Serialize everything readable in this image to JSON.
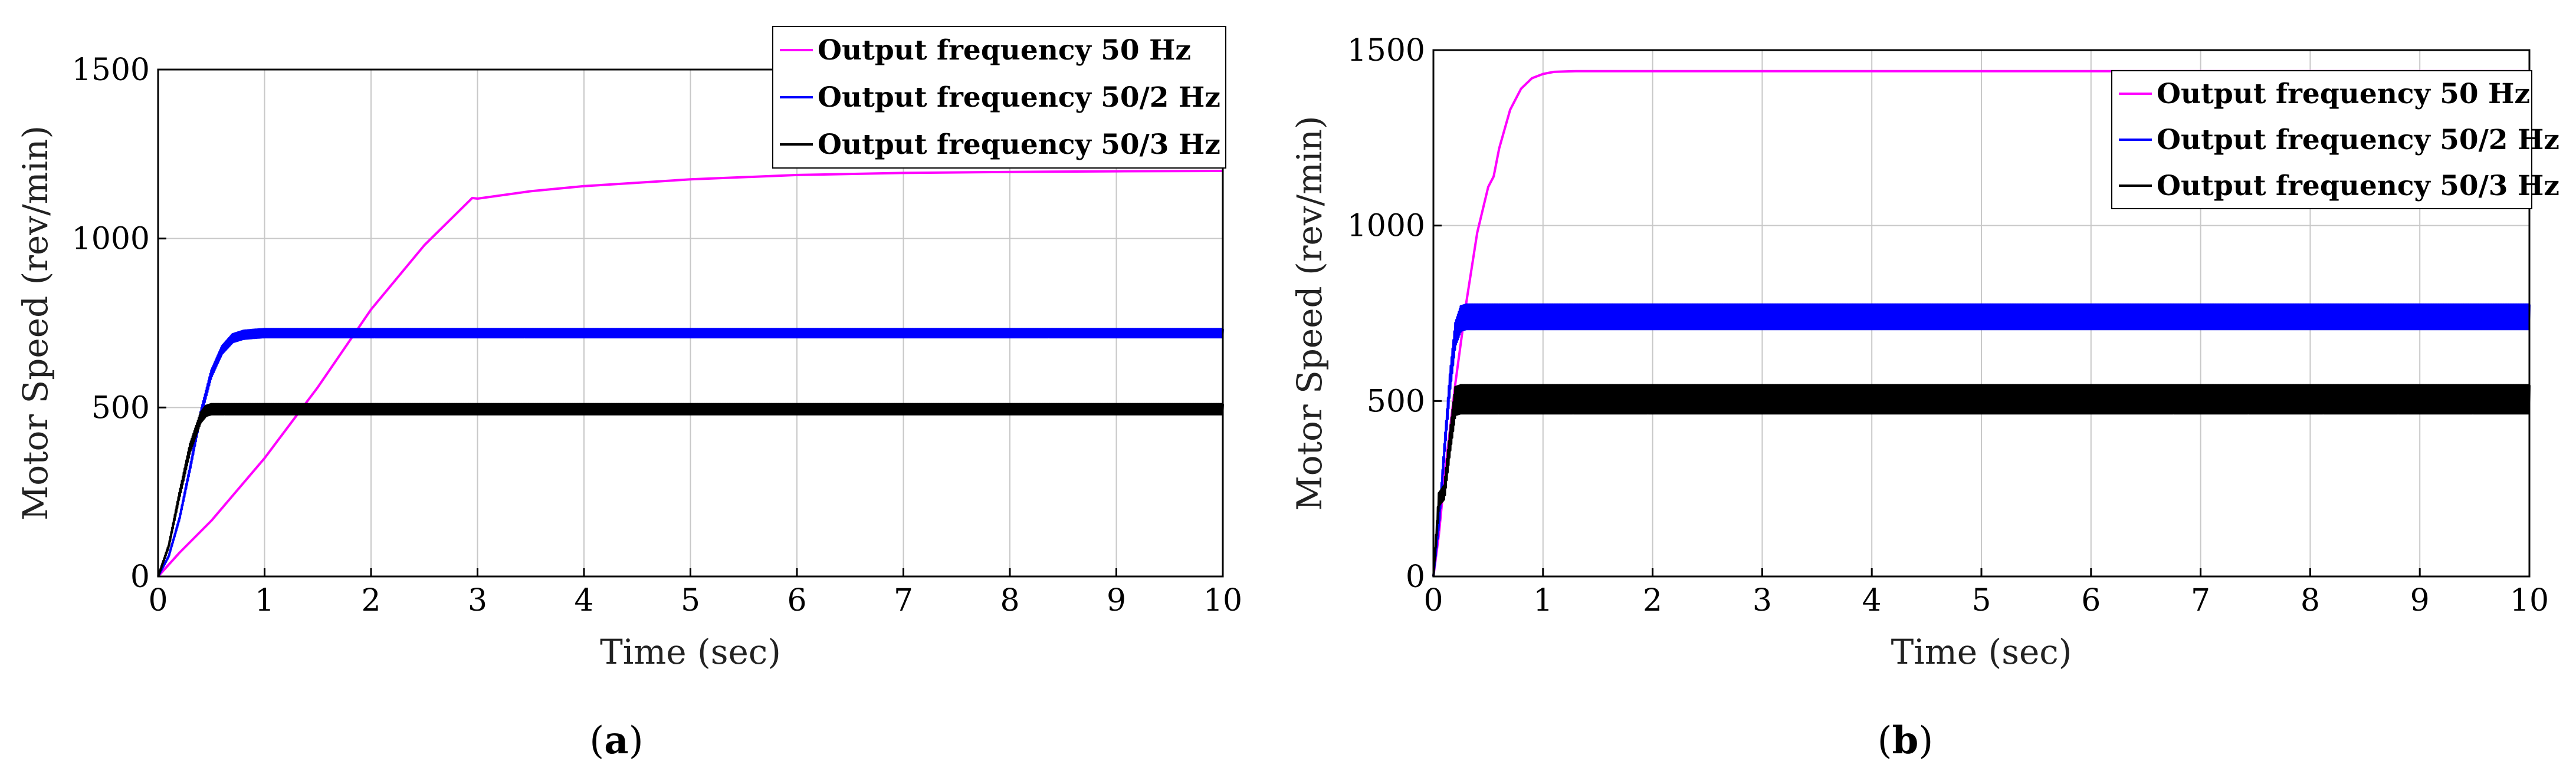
{
  "figure": {
    "captions": [
      "(a)",
      "(b)"
    ],
    "caption_letters": [
      "a",
      "b"
    ]
  },
  "chart_data": [
    {
      "id": "a",
      "type": "line",
      "xlabel": "Time (sec)",
      "ylabel": "Motor Speed (rev/min)",
      "xlim": [
        0,
        10
      ],
      "ylim": [
        0,
        1500
      ],
      "xticks": [
        0,
        1,
        2,
        3,
        4,
        5,
        6,
        7,
        8,
        9,
        10
      ],
      "yticks": [
        0,
        500,
        1000,
        1500
      ],
      "grid": true,
      "legend_position": "top-right",
      "series": [
        {
          "name": "Output frequency 50 Hz",
          "color": "#ff00ff",
          "oscillation": 0,
          "x": [
            0,
            0.2,
            0.5,
            1.0,
            1.5,
            2.0,
            2.5,
            2.95,
            3.0,
            3.5,
            4.0,
            5.0,
            6.0,
            7.0,
            8.0,
            9.0,
            10.0
          ],
          "y": [
            0,
            70,
            165,
            350,
            560,
            790,
            980,
            1120,
            1118,
            1140,
            1155,
            1175,
            1188,
            1194,
            1197,
            1199,
            1200
          ]
        },
        {
          "name": "Output frequency 50/2 Hz",
          "color": "#0000ff",
          "oscillation": 12,
          "x": [
            0,
            0.1,
            0.2,
            0.3,
            0.4,
            0.5,
            0.6,
            0.7,
            0.8,
            0.9,
            1.0,
            10.0
          ],
          "y": [
            0,
            60,
            170,
            320,
            480,
            600,
            670,
            705,
            715,
            718,
            720,
            720
          ]
        },
        {
          "name": "Output frequency 50/3 Hz",
          "color": "#000000",
          "oscillation": 15,
          "x": [
            0,
            0.1,
            0.2,
            0.3,
            0.4,
            0.45,
            0.5,
            10.0
          ],
          "y": [
            0,
            90,
            240,
            380,
            470,
            490,
            495,
            495
          ]
        }
      ]
    },
    {
      "id": "b",
      "type": "line",
      "xlabel": "Time (sec)",
      "ylabel": "Motor Speed (rev/min)",
      "xlim": [
        0,
        10
      ],
      "ylim": [
        0,
        1500
      ],
      "xticks": [
        0,
        1,
        2,
        3,
        4,
        5,
        6,
        7,
        8,
        9,
        10
      ],
      "yticks": [
        0,
        500,
        1000,
        1500
      ],
      "grid": true,
      "legend_position": "top-right",
      "series": [
        {
          "name": "Output frequency 50 Hz",
          "color": "#ff00ff",
          "oscillation": 0,
          "x": [
            0,
            0.05,
            0.1,
            0.2,
            0.3,
            0.4,
            0.5,
            0.55,
            0.6,
            0.7,
            0.8,
            0.9,
            1.0,
            1.1,
            1.3,
            2.0,
            10.0
          ],
          "y": [
            0,
            120,
            280,
            550,
            780,
            980,
            1110,
            1140,
            1220,
            1330,
            1390,
            1420,
            1432,
            1438,
            1440,
            1440,
            1440
          ]
        },
        {
          "name": "Output frequency 50/2 Hz",
          "color": "#0000ff",
          "oscillation": 35,
          "x": [
            0,
            0.05,
            0.1,
            0.15,
            0.2,
            0.25,
            0.3,
            10.0
          ],
          "y": [
            0,
            150,
            360,
            550,
            690,
            735,
            740,
            740
          ]
        },
        {
          "name": "Output frequency 50/3 Hz",
          "color": "#000000",
          "oscillation": 40,
          "x": [
            0,
            0.05,
            0.1,
            0.15,
            0.2,
            0.25,
            10.0
          ],
          "y": [
            0,
            220,
            240,
            380,
            500,
            505,
            505
          ]
        }
      ]
    }
  ]
}
